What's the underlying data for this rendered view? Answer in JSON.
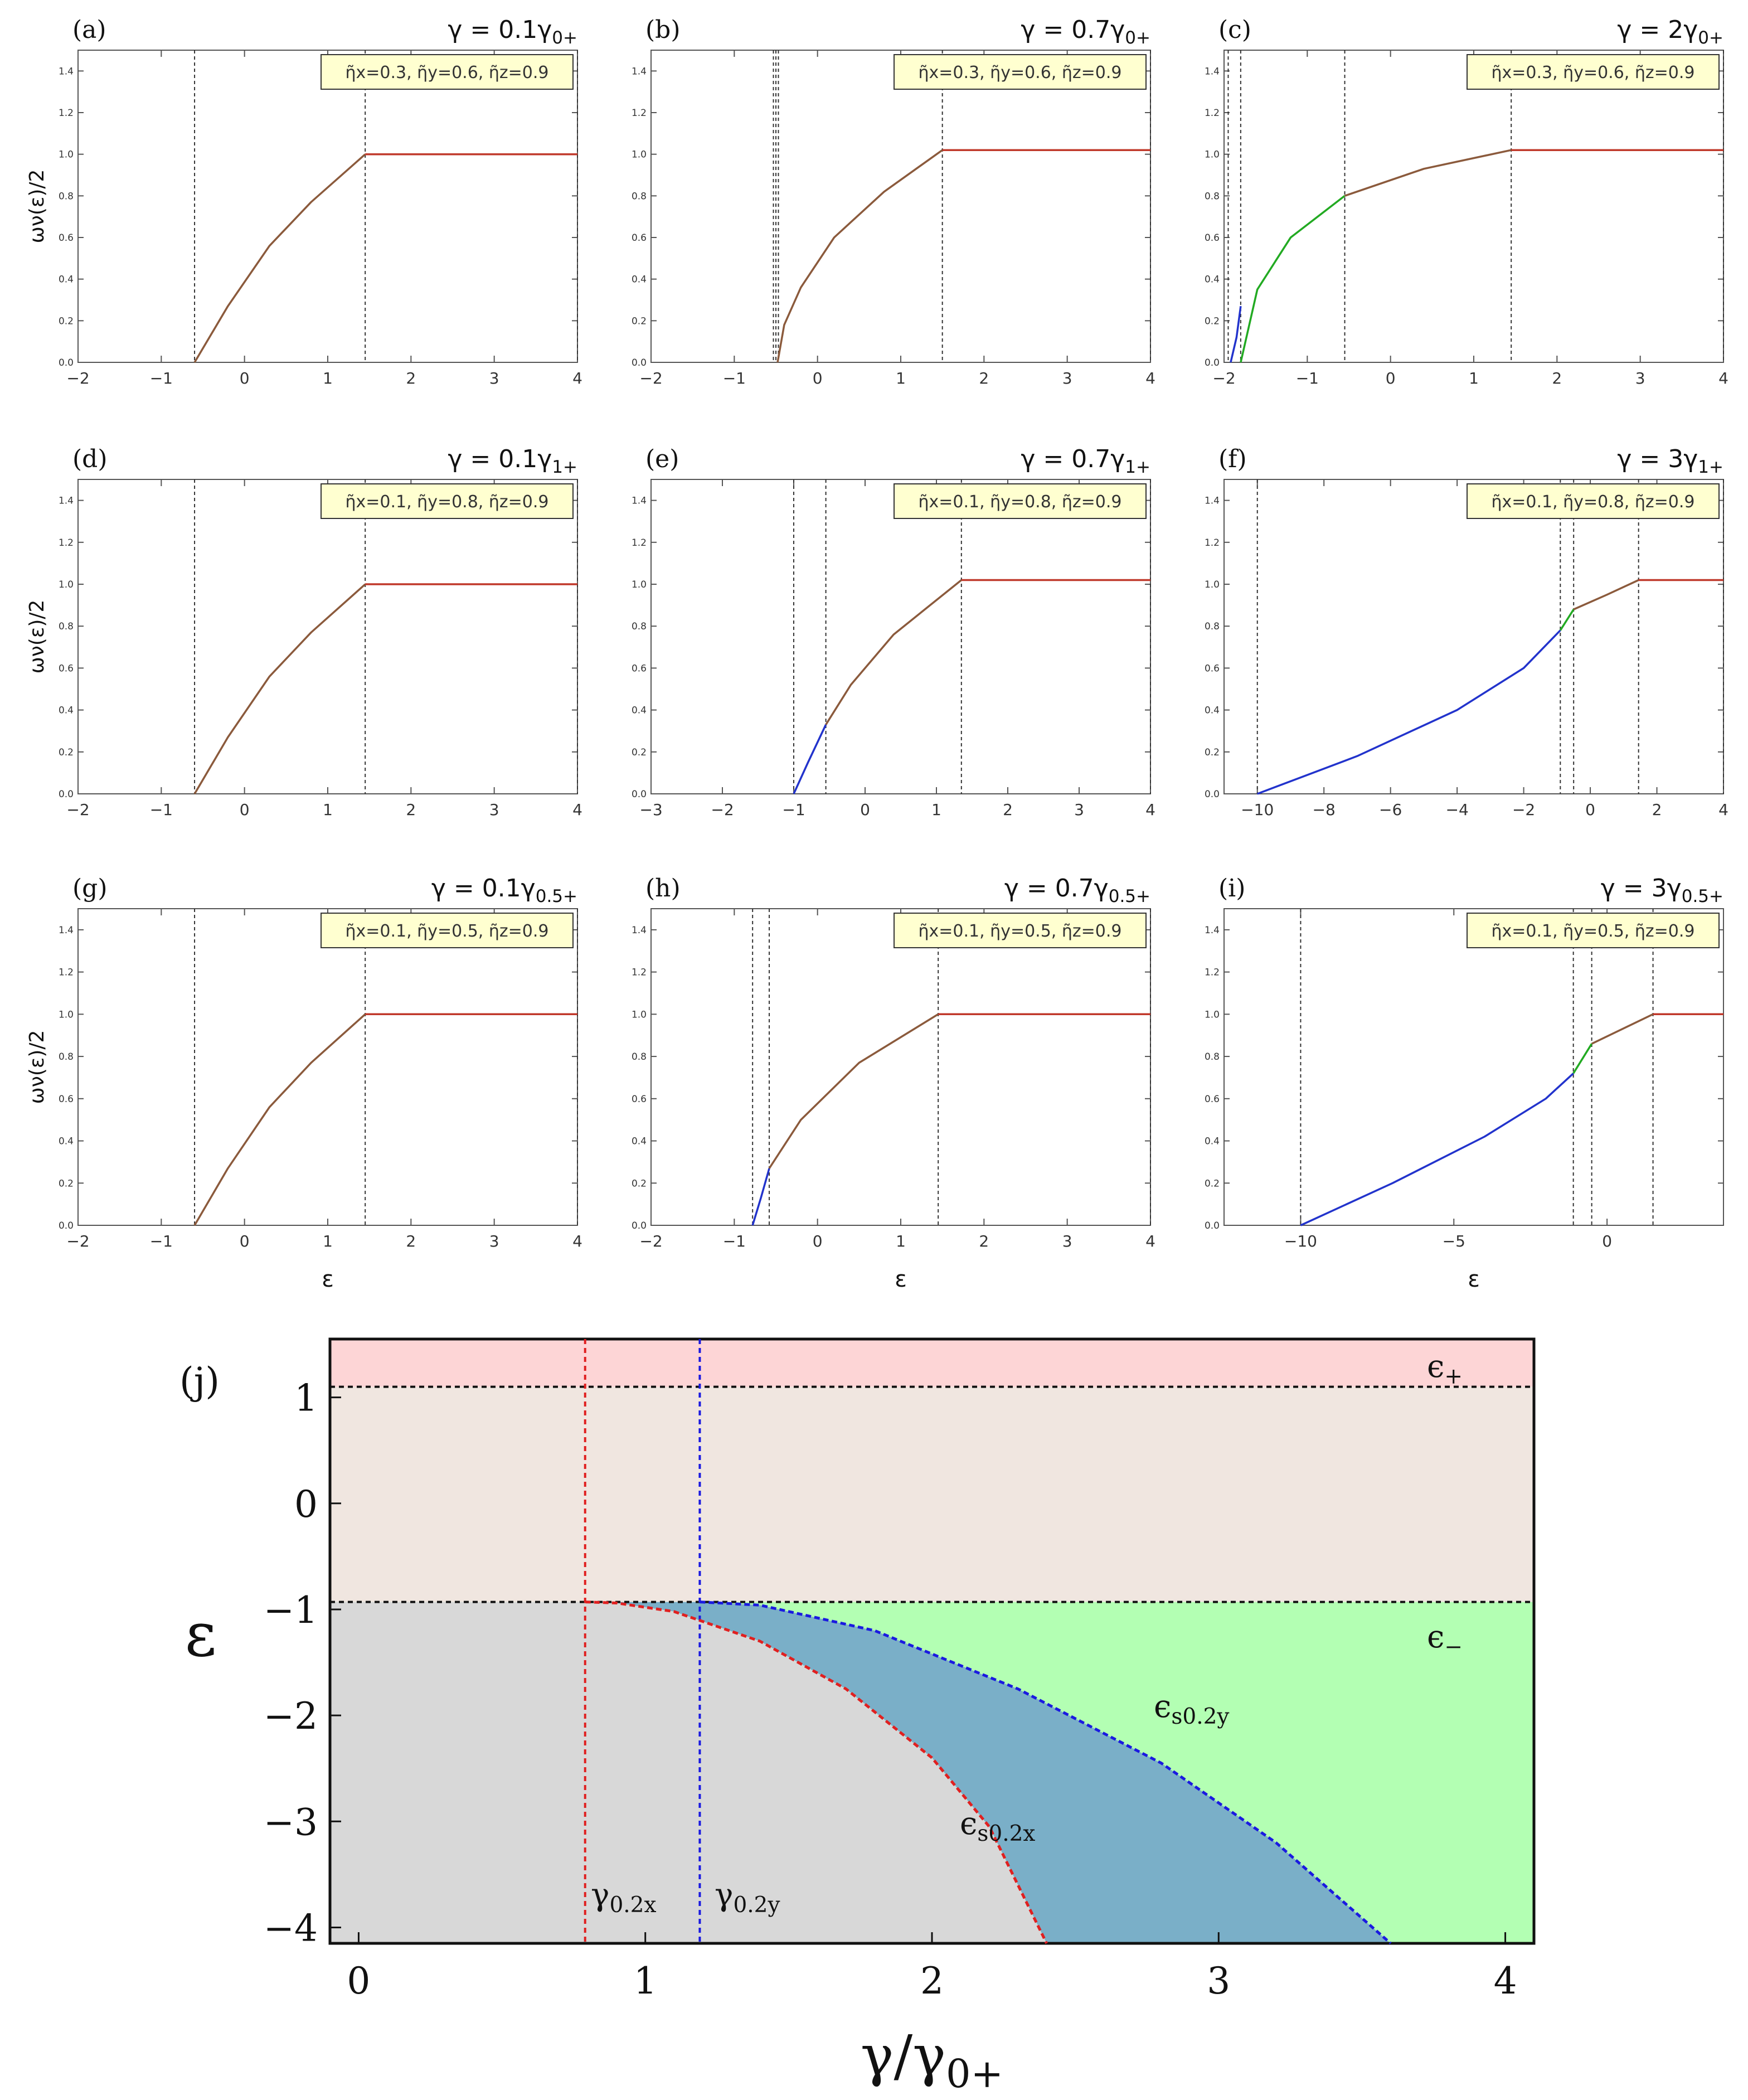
{
  "figure": {
    "small_ylabel": "ων(ε)/2",
    "small_xlabel": "ε",
    "small_yticks": [
      "0.0",
      "0.2",
      "0.4",
      "0.6",
      "0.8",
      "1.0",
      "1.2",
      "1.4"
    ]
  },
  "chart_data": [
    {
      "type": "line",
      "id": "a",
      "letter": "(a)",
      "title": "γ = 0.1γ",
      "title_sub": "0+",
      "legend": "η̃x=0.3, η̃y=0.6, η̃z=0.9",
      "xlim": [
        -2,
        4
      ],
      "ylim": [
        0,
        1.5
      ],
      "xticks": [
        -2,
        -1,
        0,
        1,
        2,
        3,
        4
      ],
      "xticklabels": [
        "−2",
        "−1",
        "0",
        "1",
        "2",
        "3",
        "4"
      ],
      "vlines": [
        -0.6,
        1.45,
        4
      ],
      "series": [
        {
          "name": "brown",
          "color": "#8b5a3c",
          "points": [
            [
              -0.6,
              0
            ],
            [
              -0.2,
              0.27
            ],
            [
              0.3,
              0.56
            ],
            [
              0.8,
              0.77
            ],
            [
              1.45,
              1.0
            ]
          ]
        },
        {
          "name": "red",
          "color": "#c0392b",
          "points": [
            [
              1.45,
              1.0
            ],
            [
              4,
              1.0
            ]
          ]
        }
      ]
    },
    {
      "type": "line",
      "id": "b",
      "letter": "(b)",
      "title": "γ = 0.7γ",
      "title_sub": "0+",
      "legend": "η̃x=0.3, η̃y=0.6, η̃z=0.9",
      "xlim": [
        -2,
        4
      ],
      "ylim": [
        0,
        1.5
      ],
      "xticks": [
        -2,
        -1,
        0,
        1,
        2,
        3,
        4
      ],
      "xticklabels": [
        "−2",
        "−1",
        "0",
        "1",
        "2",
        "3",
        "4"
      ],
      "vlines": [
        -0.53,
        -0.5,
        -0.47,
        1.5,
        4
      ],
      "series": [
        {
          "name": "brown",
          "color": "#8b5a3c",
          "points": [
            [
              -0.48,
              0
            ],
            [
              -0.4,
              0.18
            ],
            [
              -0.2,
              0.36
            ],
            [
              0.2,
              0.6
            ],
            [
              0.8,
              0.82
            ],
            [
              1.5,
              1.02
            ]
          ]
        },
        {
          "name": "red",
          "color": "#c0392b",
          "points": [
            [
              1.5,
              1.02
            ],
            [
              4,
              1.02
            ]
          ]
        }
      ]
    },
    {
      "type": "line",
      "id": "c",
      "letter": "(c)",
      "title": "γ = 2γ",
      "title_sub": "0+",
      "legend": "η̃x=0.3, η̃y=0.6, η̃z=0.9",
      "xlim": [
        -2,
        4
      ],
      "ylim": [
        0,
        1.5
      ],
      "xticks": [
        -2,
        -1,
        0,
        1,
        2,
        3,
        4
      ],
      "xticklabels": [
        "−2",
        "−1",
        "0",
        "1",
        "2",
        "3",
        "4"
      ],
      "vlines": [
        -1.95,
        -1.8,
        -0.55,
        1.45,
        4
      ],
      "series": [
        {
          "name": "blue",
          "color": "#2233cc",
          "points": [
            [
              -1.92,
              0
            ],
            [
              -1.85,
              0.12
            ],
            [
              -1.8,
              0.27
            ]
          ]
        },
        {
          "name": "green",
          "color": "#22aa22",
          "points": [
            [
              -1.8,
              0
            ],
            [
              -1.6,
              0.35
            ],
            [
              -1.2,
              0.6
            ],
            [
              -0.55,
              0.8
            ]
          ]
        },
        {
          "name": "brown",
          "color": "#8b5a3c",
          "points": [
            [
              -0.55,
              0.8
            ],
            [
              0.4,
              0.93
            ],
            [
              1.45,
              1.02
            ]
          ]
        },
        {
          "name": "red",
          "color": "#c0392b",
          "points": [
            [
              1.45,
              1.02
            ],
            [
              4,
              1.02
            ]
          ]
        }
      ]
    },
    {
      "type": "line",
      "id": "d",
      "letter": "(d)",
      "title": "γ = 0.1γ",
      "title_sub": "1+",
      "legend": "η̃x=0.1, η̃y=0.8, η̃z=0.9",
      "xlim": [
        -2,
        4
      ],
      "ylim": [
        0,
        1.5
      ],
      "xticks": [
        -2,
        -1,
        0,
        1,
        2,
        3,
        4
      ],
      "xticklabels": [
        "−2",
        "−1",
        "0",
        "1",
        "2",
        "3",
        "4"
      ],
      "vlines": [
        -0.6,
        1.45,
        4
      ],
      "series": [
        {
          "name": "brown",
          "color": "#8b5a3c",
          "points": [
            [
              -0.6,
              0
            ],
            [
              -0.2,
              0.27
            ],
            [
              0.3,
              0.56
            ],
            [
              0.8,
              0.77
            ],
            [
              1.45,
              1.0
            ]
          ]
        },
        {
          "name": "red",
          "color": "#c0392b",
          "points": [
            [
              1.45,
              1.0
            ],
            [
              4,
              1.0
            ]
          ]
        }
      ]
    },
    {
      "type": "line",
      "id": "e",
      "letter": "(e)",
      "title": "γ = 0.7γ",
      "title_sub": "1+",
      "legend": "η̃x=0.1, η̃y=0.8, η̃z=0.9",
      "xlim": [
        -3,
        4
      ],
      "ylim": [
        0,
        1.5
      ],
      "xticks": [
        -3,
        -2,
        -1,
        0,
        1,
        2,
        3,
        4
      ],
      "xticklabels": [
        "−3",
        "−2",
        "−1",
        "0",
        "1",
        "2",
        "3",
        "4"
      ],
      "vlines": [
        -1.0,
        -0.55,
        1.35,
        4
      ],
      "series": [
        {
          "name": "blue",
          "color": "#2233cc",
          "points": [
            [
              -1.0,
              0
            ],
            [
              -0.8,
              0.15
            ],
            [
              -0.55,
              0.33
            ]
          ]
        },
        {
          "name": "brown",
          "color": "#8b5a3c",
          "points": [
            [
              -0.55,
              0.33
            ],
            [
              -0.2,
              0.52
            ],
            [
              0.4,
              0.76
            ],
            [
              1.35,
              1.02
            ]
          ]
        },
        {
          "name": "red",
          "color": "#c0392b",
          "points": [
            [
              1.35,
              1.02
            ],
            [
              4,
              1.02
            ]
          ]
        }
      ]
    },
    {
      "type": "line",
      "id": "f",
      "letter": "(f)",
      "title": "γ = 3γ",
      "title_sub": "1+",
      "legend": "η̃x=0.1, η̃y=0.8, η̃z=0.9",
      "xlim": [
        -11,
        4
      ],
      "ylim": [
        0,
        1.5
      ],
      "xticks": [
        -10,
        -8,
        -6,
        -4,
        -2,
        0,
        2,
        4
      ],
      "xticklabels": [
        "−10",
        "−8",
        "−6",
        "−4",
        "−2",
        "0",
        "2",
        "4"
      ],
      "vlines": [
        -10,
        -0.9,
        -0.5,
        1.45,
        4
      ],
      "series": [
        {
          "name": "blue",
          "color": "#2233cc",
          "points": [
            [
              -10,
              0
            ],
            [
              -7,
              0.18
            ],
            [
              -4,
              0.4
            ],
            [
              -2,
              0.6
            ],
            [
              -0.9,
              0.78
            ]
          ]
        },
        {
          "name": "green",
          "color": "#22aa22",
          "points": [
            [
              -0.9,
              0.78
            ],
            [
              -0.5,
              0.88
            ]
          ]
        },
        {
          "name": "brown",
          "color": "#8b5a3c",
          "points": [
            [
              -0.5,
              0.88
            ],
            [
              0.5,
              0.95
            ],
            [
              1.45,
              1.02
            ]
          ]
        },
        {
          "name": "red",
          "color": "#c0392b",
          "points": [
            [
              1.45,
              1.02
            ],
            [
              4,
              1.02
            ]
          ]
        }
      ]
    },
    {
      "type": "line",
      "id": "g",
      "letter": "(g)",
      "title": "γ = 0.1γ",
      "title_sub": "0.5+",
      "legend": "η̃x=0.1, η̃y=0.5, η̃z=0.9",
      "xlim": [
        -2,
        4
      ],
      "ylim": [
        0,
        1.5
      ],
      "xticks": [
        -2,
        -1,
        0,
        1,
        2,
        3,
        4
      ],
      "xticklabels": [
        "−2",
        "−1",
        "0",
        "1",
        "2",
        "3",
        "4"
      ],
      "vlines": [
        -0.6,
        1.45,
        4
      ],
      "series": [
        {
          "name": "brown",
          "color": "#8b5a3c",
          "points": [
            [
              -0.6,
              0
            ],
            [
              -0.2,
              0.27
            ],
            [
              0.3,
              0.56
            ],
            [
              0.8,
              0.77
            ],
            [
              1.45,
              1.0
            ]
          ]
        },
        {
          "name": "red",
          "color": "#c0392b",
          "points": [
            [
              1.45,
              1.0
            ],
            [
              4,
              1.0
            ]
          ]
        }
      ]
    },
    {
      "type": "line",
      "id": "h",
      "letter": "(h)",
      "title": "γ = 0.7γ",
      "title_sub": "0.5+",
      "legend": "η̃x=0.1, η̃y=0.5, η̃z=0.9",
      "xlim": [
        -2,
        4
      ],
      "ylim": [
        0,
        1.5
      ],
      "xticks": [
        -2,
        -1,
        0,
        1,
        2,
        3,
        4
      ],
      "xticklabels": [
        "−2",
        "−1",
        "0",
        "1",
        "2",
        "3",
        "4"
      ],
      "vlines": [
        -0.78,
        -0.58,
        1.45,
        4
      ],
      "series": [
        {
          "name": "blue",
          "color": "#2233cc",
          "points": [
            [
              -0.78,
              0
            ],
            [
              -0.68,
              0.13
            ],
            [
              -0.58,
              0.27
            ]
          ]
        },
        {
          "name": "brown",
          "color": "#8b5a3c",
          "points": [
            [
              -0.58,
              0.27
            ],
            [
              -0.2,
              0.5
            ],
            [
              0.5,
              0.77
            ],
            [
              1.45,
              1.0
            ]
          ]
        },
        {
          "name": "red",
          "color": "#c0392b",
          "points": [
            [
              1.45,
              1.0
            ],
            [
              4,
              1.0
            ]
          ]
        }
      ]
    },
    {
      "type": "line",
      "id": "i",
      "letter": "(i)",
      "title": "γ = 3γ",
      "title_sub": "0.5+",
      "legend": "η̃x=0.1, η̃y=0.5, η̃z=0.9",
      "xlim": [
        -12.5,
        3.8
      ],
      "ylim": [
        0,
        1.5
      ],
      "xticks": [
        -10,
        -5,
        0
      ],
      "xticklabels": [
        "−10",
        "−5",
        "0"
      ],
      "vlines": [
        -10,
        -1.1,
        -0.5,
        1.5
      ],
      "series": [
        {
          "name": "blue",
          "color": "#2233cc",
          "points": [
            [
              -10,
              0
            ],
            [
              -7,
              0.2
            ],
            [
              -4,
              0.42
            ],
            [
              -2,
              0.6
            ],
            [
              -1.1,
              0.72
            ]
          ]
        },
        {
          "name": "green",
          "color": "#22aa22",
          "points": [
            [
              -1.1,
              0.72
            ],
            [
              -0.5,
              0.86
            ]
          ]
        },
        {
          "name": "brown",
          "color": "#8b5a3c",
          "points": [
            [
              -0.5,
              0.86
            ],
            [
              0.5,
              0.93
            ],
            [
              1.5,
              1.0
            ]
          ]
        },
        {
          "name": "red",
          "color": "#c0392b",
          "points": [
            [
              1.5,
              1.0
            ],
            [
              3.8,
              1.0
            ]
          ]
        }
      ]
    },
    {
      "type": "area",
      "id": "j",
      "letter": "(j)",
      "xlabel": "γ/γ",
      "xlabel_sub": "0+",
      "ylabel": "ε",
      "xlim": [
        -0.1,
        4.1
      ],
      "ylim": [
        -4.15,
        1.55
      ],
      "xticks": [
        0,
        1,
        2,
        3,
        4
      ],
      "xticklabels": [
        "0",
        "1",
        "2",
        "3",
        "4"
      ],
      "yticks": [
        1,
        0,
        -1,
        -2,
        -3,
        -4
      ],
      "yticklabels": [
        "1",
        "0",
        "−1",
        "−2",
        "−3",
        "−4"
      ],
      "eps_plus": 1.1,
      "eps_minus": -0.93,
      "gamma_x": 0.79,
      "gamma_y": 1.19,
      "curve_x": [
        [
          0.79,
          -0.93
        ],
        [
          0.9,
          -0.94
        ],
        [
          1.1,
          -1.02
        ],
        [
          1.4,
          -1.3
        ],
        [
          1.7,
          -1.75
        ],
        [
          2.0,
          -2.4
        ],
        [
          2.2,
          -3.05
        ],
        [
          2.4,
          -4.15
        ]
      ],
      "curve_y": [
        [
          1.19,
          -0.93
        ],
        [
          1.4,
          -0.96
        ],
        [
          1.8,
          -1.2
        ],
        [
          2.3,
          -1.75
        ],
        [
          2.8,
          -2.45
        ],
        [
          3.2,
          -3.2
        ],
        [
          3.6,
          -4.15
        ]
      ],
      "colors": {
        "top": "#fdd5d6",
        "middle": "#f0e6e0",
        "gray": "#d8d8d8",
        "blue": "#7aafc8",
        "green": "#b3ffb3"
      },
      "labels": {
        "eps_plus": "ϵ",
        "eps_plus_sub": "+",
        "eps_minus": "ϵ",
        "eps_minus_sub": "−",
        "curve_x": "ϵ",
        "curve_x_sub": "s0.2x",
        "curve_y": "ϵ",
        "curve_y_sub": "s0.2y",
        "gamma_x": "γ",
        "gamma_x_sub": "0.2x",
        "gamma_y": "γ",
        "gamma_y_sub": "0.2y"
      }
    }
  ]
}
